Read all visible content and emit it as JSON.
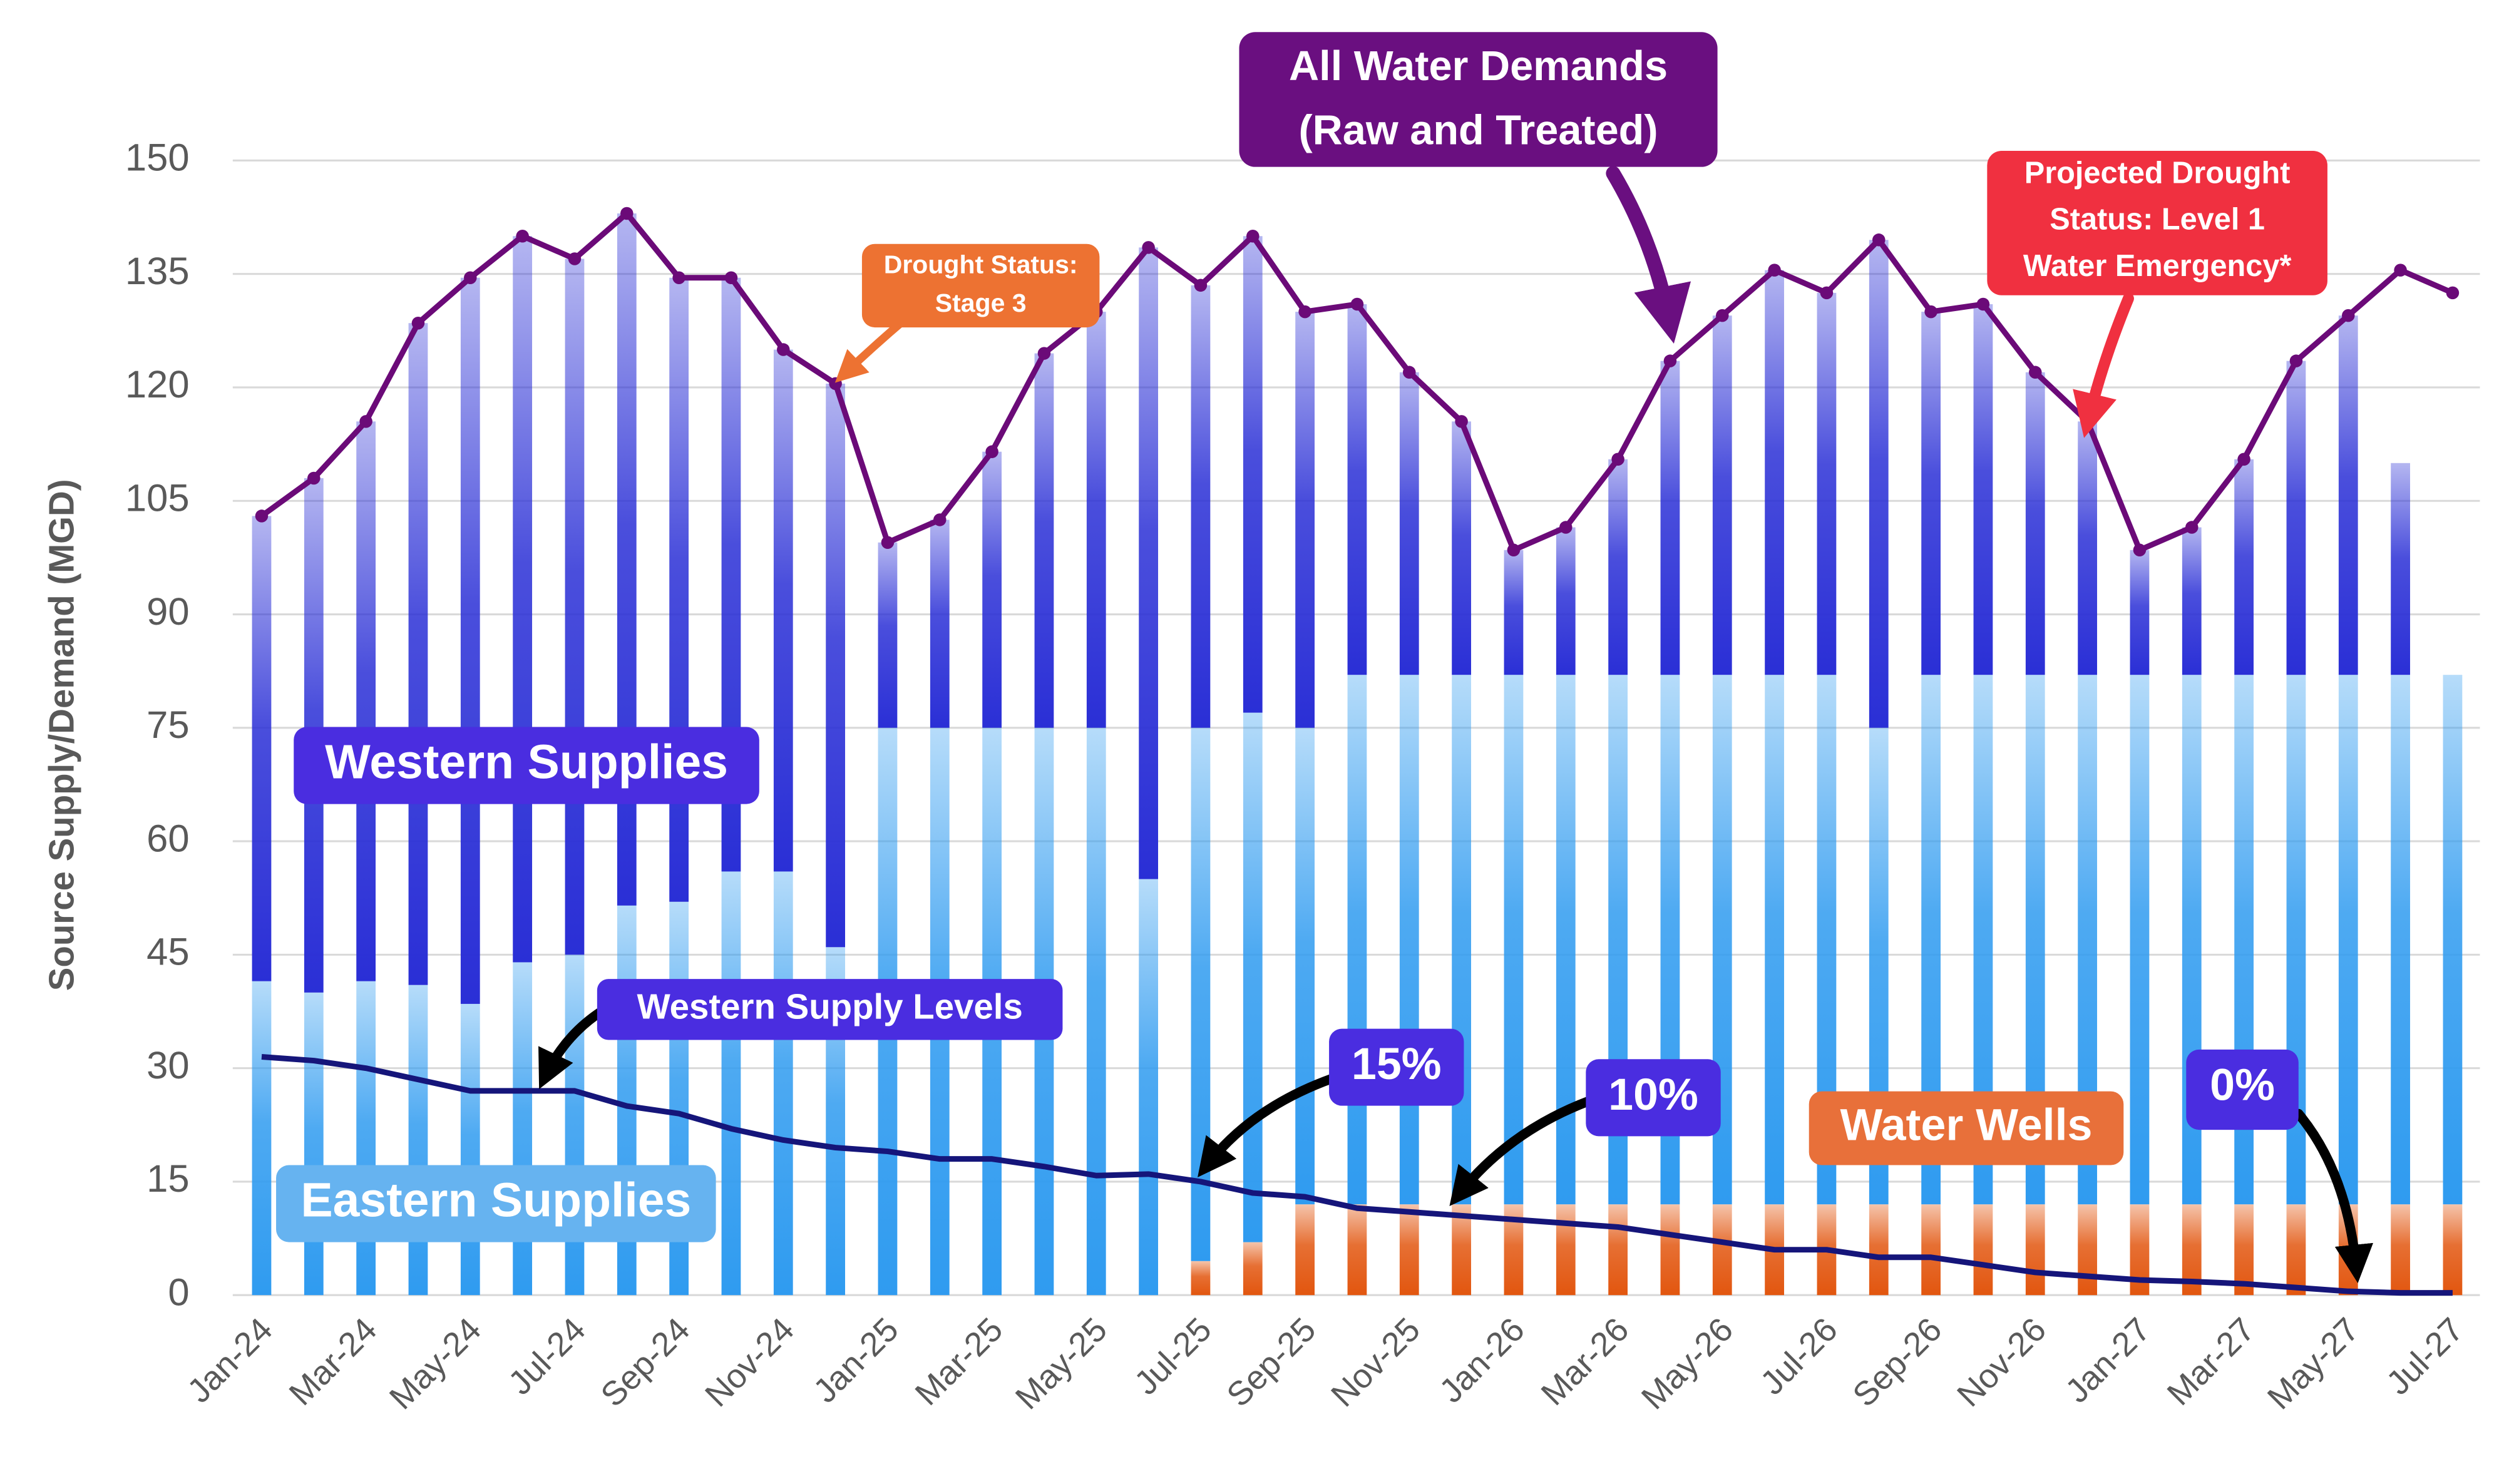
{
  "chart_data": {
    "type": "bar",
    "stacked": true,
    "y_label": "Source Supply/Demand (MGD)",
    "ylim": [
      0,
      150
    ],
    "yticks": [
      0,
      15,
      30,
      45,
      60,
      75,
      90,
      105,
      120,
      135,
      150
    ],
    "grid": true,
    "categories": [
      "Jan-24",
      null,
      "Mar-24",
      null,
      "May-24",
      null,
      "Jul-24",
      null,
      "Sep-24",
      null,
      "Nov-24",
      null,
      "Jan-25",
      null,
      "Mar-25",
      null,
      "May-25",
      null,
      "Jul-25",
      null,
      "Sep-25",
      null,
      "Nov-25",
      null,
      "Jan-26",
      null,
      "Mar-26",
      null,
      "May-26",
      null,
      "Jul-26",
      null,
      "Sep-26",
      null,
      "Nov-26",
      null,
      "Jan-27",
      null,
      "Mar-27",
      null,
      "May-27",
      null,
      "Jul-27"
    ],
    "series": [
      {
        "name": "Water Wells",
        "type": "bar",
        "color": "#e2560f",
        "values": [
          0,
          0,
          0,
          0,
          0,
          0,
          0,
          0,
          0,
          0,
          0,
          0,
          0,
          0,
          0,
          0,
          0,
          0,
          4.5,
          7,
          12,
          12,
          12,
          12,
          12,
          12,
          12,
          12,
          12,
          12,
          12,
          12,
          12,
          12,
          12,
          12,
          12,
          12,
          12,
          12,
          12,
          12,
          12
        ]
      },
      {
        "name": "Eastern Supplies",
        "type": "bar",
        "color": "#2f9bf0",
        "values": [
          41.5,
          40,
          41.5,
          41,
          38.5,
          44,
          45,
          51.5,
          52,
          56,
          56,
          46,
          75,
          75,
          75,
          75,
          75,
          55,
          70.5,
          70,
          63,
          70,
          70,
          70,
          70,
          70,
          70,
          70,
          70,
          70,
          70,
          63,
          70,
          70,
          70,
          70,
          70,
          70,
          70,
          70,
          70,
          70,
          70
        ]
      },
      {
        "name": "Western Supplies",
        "type": "bar",
        "color": "#2a2fd6",
        "values": [
          61.5,
          68,
          74,
          87.5,
          96,
          96,
          92,
          91.5,
          82.5,
          78.5,
          69,
          74.5,
          24.5,
          27.5,
          36.5,
          49.5,
          55,
          83.5,
          58.5,
          63,
          55,
          49,
          40,
          33.5,
          16.5,
          19.5,
          28.5,
          41.5,
          47.5,
          53.5,
          50.5,
          64.5,
          48,
          49,
          40,
          33.5,
          16.5,
          19.5,
          28.5,
          41.5,
          47.5,
          28,
          0
        ]
      },
      {
        "name": "All Water Demands",
        "type": "line",
        "color": "#6b0a78",
        "markers": true,
        "values": [
          103,
          108,
          115.5,
          128.5,
          134.5,
          140,
          137,
          143,
          134.5,
          134.5,
          125,
          120.5,
          99.5,
          102.5,
          111.5,
          124.5,
          130,
          138.5,
          133.5,
          140,
          130,
          131,
          122,
          115.5,
          98.5,
          101.5,
          110.5,
          123.5,
          129.5,
          135.5,
          132.5,
          139.5,
          130,
          131,
          122,
          115.5,
          98.5,
          101.5,
          110.5,
          123.5,
          129.5,
          135.5,
          132.5
        ]
      },
      {
        "name": "Western Supply Levels",
        "type": "line",
        "color": "#15157a",
        "markers": false,
        "values": [
          31.5,
          31,
          30,
          28.5,
          27,
          27,
          27,
          25,
          24,
          22,
          20.5,
          19.5,
          19,
          18,
          18,
          17,
          15.8,
          16,
          15,
          13.5,
          13,
          11.5,
          11,
          10.5,
          10,
          9.5,
          9,
          8,
          7,
          6,
          6,
          5,
          5,
          4,
          3,
          2.5,
          2,
          1.8,
          1.5,
          1,
          0.5,
          0.3,
          0.3
        ]
      }
    ],
    "annotations": [
      "(Raw and Treated)",
      "Drought Status:",
      "Stage 3",
      "Projected Drought",
      "Status: Level 1",
      "Water Emergency*",
      "15%",
      "10%",
      "0%"
    ]
  }
}
